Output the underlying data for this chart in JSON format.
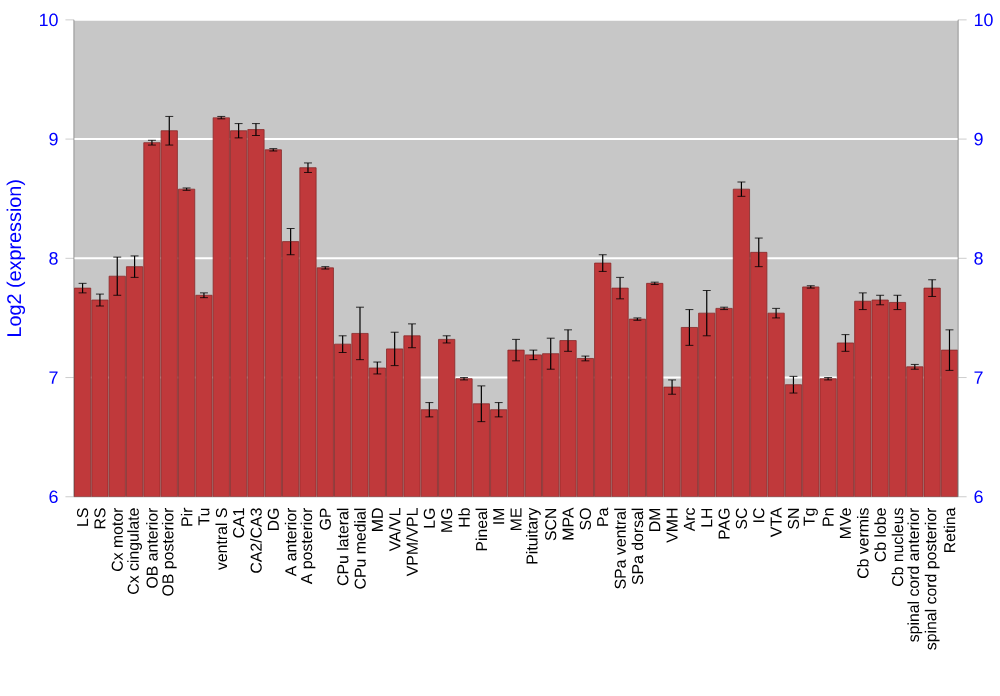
{
  "chart_data": {
    "type": "bar",
    "ylabel": "Log2 (expression)",
    "categories": [
      "LS",
      "RS",
      "Cx motor",
      "Cx cingulate",
      "OB anterior",
      "OB posterior",
      "Pir",
      "Tu",
      "ventral S",
      "CA1",
      "CA2/CA3",
      "DG",
      "A anterior",
      "A posterior",
      "GP",
      "CPu lateral",
      "CPu medial",
      "MD",
      "VA/VL",
      "VPM/VPL",
      "LG",
      "MG",
      "Hb",
      "Pineal",
      "IM",
      "ME",
      "Pituitary",
      "SCN",
      "MPA",
      "SO",
      "Pa",
      "SPa ventral",
      "SPa dorsal",
      "DM",
      "VMH",
      "Arc",
      "LH",
      "PAG",
      "SC",
      "IC",
      "VTA",
      "SN",
      "Tg",
      "Pn",
      "MVe",
      "Cb vermis",
      "Cb lobe",
      "Cb nucleus",
      "spinal cord anterior",
      "spinal cord posterior",
      "Retina"
    ],
    "values": [
      7.75,
      7.65,
      7.85,
      7.93,
      8.97,
      9.07,
      8.58,
      7.69,
      9.18,
      9.07,
      9.08,
      8.91,
      8.14,
      8.76,
      7.92,
      7.28,
      7.37,
      7.08,
      7.24,
      7.35,
      6.73,
      7.32,
      6.99,
      6.78,
      6.73,
      7.23,
      7.19,
      7.2,
      7.31,
      7.16,
      7.96,
      7.75,
      7.49,
      7.79,
      6.92,
      7.42,
      7.54,
      7.58,
      8.58,
      8.05,
      7.54,
      6.94,
      7.76,
      6.99,
      7.29,
      7.64,
      7.65,
      7.63,
      7.09,
      7.75,
      7.23
    ],
    "errors": [
      0.04,
      0.05,
      0.16,
      0.09,
      0.02,
      0.12,
      0.01,
      0.02,
      0.01,
      0.06,
      0.05,
      0.01,
      0.11,
      0.04,
      0.01,
      0.07,
      0.22,
      0.05,
      0.14,
      0.1,
      0.06,
      0.03,
      0.01,
      0.15,
      0.06,
      0.09,
      0.04,
      0.13,
      0.09,
      0.02,
      0.07,
      0.09,
      0.01,
      0.01,
      0.06,
      0.15,
      0.19,
      0.01,
      0.06,
      0.12,
      0.04,
      0.07,
      0.01,
      0.01,
      0.07,
      0.07,
      0.04,
      0.06,
      0.02,
      0.07,
      0.17
    ],
    "color": "#c0393b",
    "ylim": [
      6,
      10
    ],
    "yticks": [
      6,
      7,
      8,
      9,
      10
    ],
    "y2lim": [
      6,
      10
    ],
    "y2ticks": [
      6,
      7,
      8,
      9,
      10
    ],
    "grid": "y"
  }
}
